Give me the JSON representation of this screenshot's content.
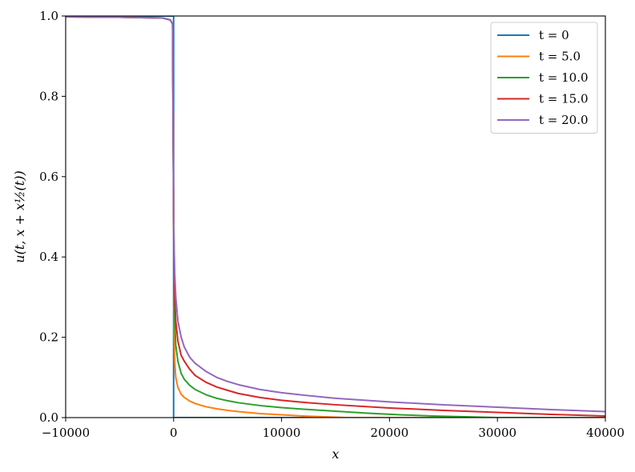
{
  "chart_data": {
    "type": "line",
    "xlabel": "x",
    "ylabel": "u(t, x + x½(t))",
    "xlim": [
      -10000,
      40000
    ],
    "ylim": [
      0.0,
      1.0
    ],
    "xticks": [
      -10000,
      0,
      10000,
      20000,
      30000,
      40000
    ],
    "xtick_labels": [
      "−10000",
      "0",
      "10000",
      "20000",
      "30000",
      "40000"
    ],
    "yticks": [
      0.0,
      0.2,
      0.4,
      0.6,
      0.8,
      1.0
    ],
    "ytick_labels": [
      "0.0",
      "0.2",
      "0.4",
      "0.6",
      "0.8",
      "1.0"
    ],
    "grid": false,
    "legend_position": "top-right",
    "series": [
      {
        "name": "t = 0",
        "color": "#1f77b4",
        "x": [
          -10000,
          0,
          0,
          0,
          40000
        ],
        "y": [
          1.0,
          1.0,
          0.5,
          0.0,
          0.0
        ]
      },
      {
        "name": "t = 5.0",
        "color": "#ff7f0e",
        "x": [
          -10000,
          -5000,
          -1000,
          -300,
          -100,
          0,
          50,
          100,
          200,
          400,
          700,
          1000,
          1500,
          2000,
          3000,
          4000,
          5000,
          6000,
          8000,
          10000,
          12000,
          14000,
          16000,
          20000,
          30000,
          40000
        ],
        "y": [
          0.998,
          0.997,
          0.995,
          0.99,
          0.98,
          0.5,
          0.2,
          0.14,
          0.1,
          0.075,
          0.058,
          0.05,
          0.041,
          0.035,
          0.027,
          0.022,
          0.018,
          0.015,
          0.01,
          0.007,
          0.004,
          0.002,
          0.0,
          0.0,
          0.0,
          0.0
        ]
      },
      {
        "name": "t = 10.0",
        "color": "#2ca02c",
        "x": [
          -10000,
          -5000,
          -1000,
          -300,
          -100,
          0,
          50,
          100,
          200,
          400,
          700,
          1000,
          1500,
          2000,
          3000,
          4000,
          5000,
          6000,
          8000,
          10000,
          12000,
          15000,
          18000,
          21000,
          24000,
          27000,
          30000,
          40000
        ],
        "y": [
          0.998,
          0.997,
          0.995,
          0.99,
          0.98,
          0.5,
          0.32,
          0.24,
          0.18,
          0.14,
          0.11,
          0.095,
          0.08,
          0.07,
          0.057,
          0.048,
          0.042,
          0.037,
          0.03,
          0.025,
          0.021,
          0.016,
          0.011,
          0.007,
          0.004,
          0.002,
          0.0,
          0.0
        ]
      },
      {
        "name": "t = 15.0",
        "color": "#d62728",
        "x": [
          -10000,
          -5000,
          -1000,
          -300,
          -100,
          0,
          50,
          100,
          200,
          400,
          700,
          1000,
          1500,
          2000,
          3000,
          4000,
          5000,
          6000,
          8000,
          10000,
          12000,
          15000,
          20000,
          25000,
          30000,
          35000,
          40000
        ],
        "y": [
          0.998,
          0.997,
          0.995,
          0.99,
          0.98,
          0.5,
          0.37,
          0.3,
          0.24,
          0.19,
          0.155,
          0.14,
          0.12,
          0.105,
          0.088,
          0.076,
          0.068,
          0.06,
          0.05,
          0.043,
          0.038,
          0.032,
          0.024,
          0.018,
          0.013,
          0.008,
          0.004
        ]
      },
      {
        "name": "t = 20.0",
        "color": "#9467bd",
        "x": [
          -10000,
          -5000,
          -1000,
          -300,
          -100,
          0,
          50,
          100,
          200,
          400,
          700,
          1000,
          1500,
          2000,
          3000,
          4000,
          5000,
          6000,
          8000,
          10000,
          12000,
          15000,
          20000,
          25000,
          30000,
          35000,
          40000
        ],
        "y": [
          0.998,
          0.997,
          0.995,
          0.99,
          0.98,
          0.5,
          0.42,
          0.36,
          0.3,
          0.24,
          0.2,
          0.175,
          0.15,
          0.135,
          0.115,
          0.1,
          0.09,
          0.082,
          0.07,
          0.062,
          0.056,
          0.048,
          0.039,
          0.032,
          0.026,
          0.02,
          0.015
        ]
      }
    ]
  }
}
